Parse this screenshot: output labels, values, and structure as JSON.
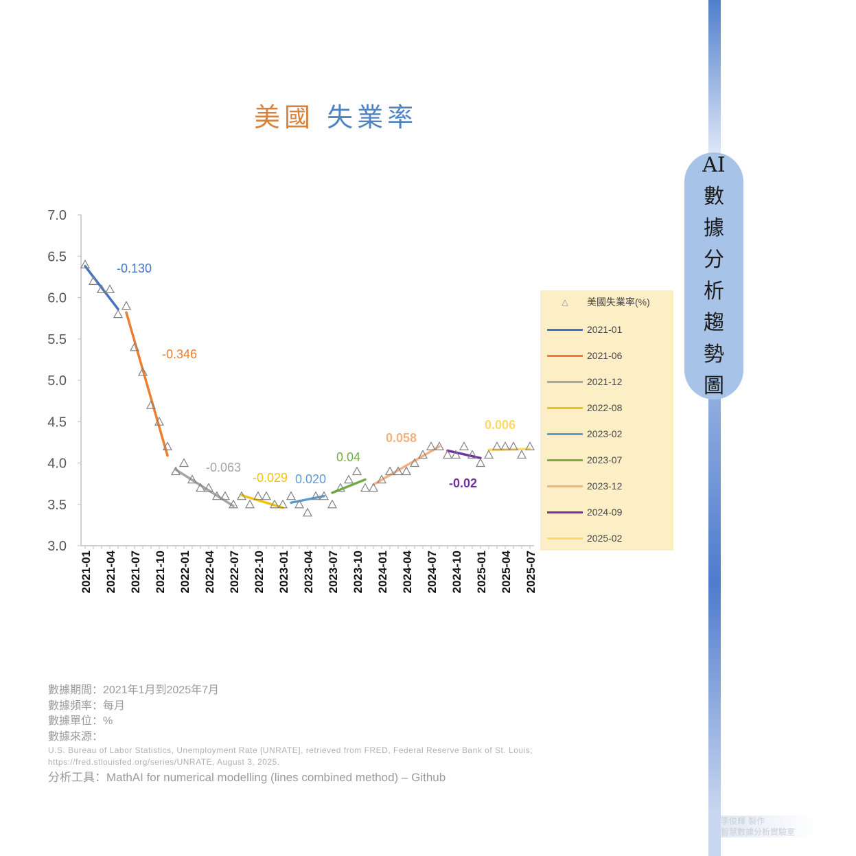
{
  "title": {
    "part1": "美國",
    "part2": "失業率"
  },
  "side_label": [
    "AI",
    "數",
    "據",
    "分",
    "析",
    "趨",
    "勢",
    "圖"
  ],
  "chart_data": {
    "type": "scatter",
    "title": "",
    "xlabel": "",
    "ylabel": "",
    "ylim": [
      3.0,
      7.0
    ],
    "y_ticks": [
      "3.0",
      "3.5",
      "4.0",
      "4.5",
      "5.0",
      "5.5",
      "6.0",
      "6.5",
      "7.0"
    ],
    "x_ticks": [
      "2021-01",
      "2021-04",
      "2021-07",
      "2021-10",
      "2022-01",
      "2022-04",
      "2022-07",
      "2022-10",
      "2023-01",
      "2023-04",
      "2023-07",
      "2023-10",
      "2024-01",
      "2024-04",
      "2024-07",
      "2024-10",
      "2025-01",
      "2025-04",
      "2025-07"
    ],
    "legend_position": "right",
    "scatter": {
      "name": "美國失業率(%)",
      "values": [
        6.4,
        6.2,
        6.1,
        6.1,
        5.8,
        5.9,
        5.4,
        5.1,
        4.7,
        4.5,
        4.2,
        3.9,
        4.0,
        3.8,
        3.7,
        3.7,
        3.6,
        3.6,
        3.5,
        3.6,
        3.5,
        3.6,
        3.6,
        3.5,
        3.5,
        3.6,
        3.5,
        3.4,
        3.6,
        3.6,
        3.5,
        3.7,
        3.8,
        3.9,
        3.7,
        3.7,
        3.8,
        3.9,
        3.9,
        3.9,
        4.0,
        4.1,
        4.2,
        4.2,
        4.1,
        4.1,
        4.2,
        4.1,
        4.0,
        4.1,
        4.2,
        4.2,
        4.2,
        4.1,
        4.2
      ]
    },
    "trend_segments": [
      {
        "name": "2021-01",
        "start": 0,
        "end": 4,
        "y0": 6.38,
        "y1": 5.86,
        "slope_label": "-0.130",
        "color": "#4472c4"
      },
      {
        "name": "2021-06",
        "start": 5,
        "end": 10,
        "y0": 5.82,
        "y1": 4.09,
        "slope_label": "-0.346",
        "color": "#ed7d31"
      },
      {
        "name": "2021-12",
        "start": 11,
        "end": 18,
        "y0": 3.92,
        "y1": 3.48,
        "slope_label": "-0.063",
        "color": "#a5a5a5"
      },
      {
        "name": "2022-08",
        "start": 19,
        "end": 24,
        "y0": 3.61,
        "y1": 3.46,
        "slope_label": "-0.029",
        "color": "#f4c20d"
      },
      {
        "name": "2023-02",
        "start": 25,
        "end": 29,
        "y0": 3.52,
        "y1": 3.6,
        "slope_label": "0.020",
        "color": "#5b9bd5"
      },
      {
        "name": "2023-07",
        "start": 30,
        "end": 34,
        "y0": 3.64,
        "y1": 3.8,
        "slope_label": "0.04",
        "color": "#70ad47"
      },
      {
        "name": "2023-12",
        "start": 35,
        "end": 43,
        "y0": 3.74,
        "y1": 4.2,
        "slope_label": "0.058",
        "color": "#f4b183"
      },
      {
        "name": "2024-09",
        "start": 44,
        "end": 48,
        "y0": 4.15,
        "y1": 4.06,
        "slope_label": "-0.02",
        "color": "#7030a0"
      },
      {
        "name": "2025-02",
        "start": 49,
        "end": 54,
        "y0": 4.16,
        "y1": 4.17,
        "slope_label": "0.006",
        "color": "#ffd966"
      }
    ]
  },
  "notes": {
    "period": "數據期間：2021年1月到2025年7月",
    "frequency": "數據頻率：每月",
    "unit": "數據單位：%",
    "source_label": "數據來源：",
    "source_line1": "U.S. Bureau of Labor Statistics, Unemployment Rate [UNRATE], retrieved from FRED, Federal Reserve Bank of St. Louis;",
    "source_line2": "https://fred.stlouisfed.org/series/UNRATE, August 3, 2025.",
    "tool": "分析工具：MathAI for numerical modelling (lines combined method) – Github"
  },
  "credit": {
    "line1": "李俊輝 製作",
    "line2": "智慧數據分析實驗室"
  }
}
